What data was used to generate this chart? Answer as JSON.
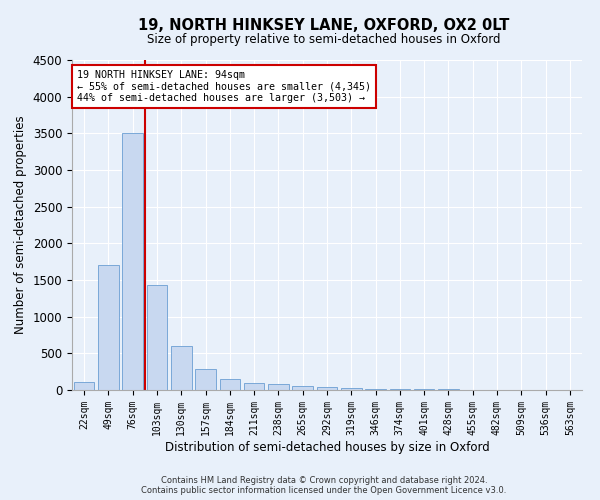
{
  "title_line1": "19, NORTH HINKSEY LANE, OXFORD, OX2 0LT",
  "title_line2": "Size of property relative to semi-detached houses in Oxford",
  "xlabel": "Distribution of semi-detached houses by size in Oxford",
  "ylabel": "Number of semi-detached properties",
  "footer_line1": "Contains HM Land Registry data © Crown copyright and database right 2024.",
  "footer_line2": "Contains public sector information licensed under the Open Government Licence v3.0.",
  "categories": [
    "22sqm",
    "49sqm",
    "76sqm",
    "103sqm",
    "130sqm",
    "157sqm",
    "184sqm",
    "211sqm",
    "238sqm",
    "265sqm",
    "292sqm",
    "319sqm",
    "346sqm",
    "374sqm",
    "401sqm",
    "428sqm",
    "455sqm",
    "482sqm",
    "509sqm",
    "536sqm",
    "563sqm"
  ],
  "values": [
    110,
    1700,
    3500,
    1430,
    600,
    280,
    150,
    100,
    80,
    55,
    40,
    30,
    20,
    15,
    10,
    8,
    6,
    5,
    4,
    3,
    2
  ],
  "bar_color": "#c8d8f0",
  "bar_edge_color": "#7aa8d8",
  "background_color": "#e8f0fa",
  "grid_color": "#ffffff",
  "property_label": "19 NORTH HINKSEY LANE: 94sqm",
  "annotation_smaller": "← 55% of semi-detached houses are smaller (4,345)",
  "annotation_larger": "44% of semi-detached houses are larger (3,503) →",
  "annotation_box_color": "#ffffff",
  "annotation_box_edge_color": "#cc0000",
  "property_line_color": "#cc0000",
  "ylim": [
    0,
    4500
  ],
  "yticks": [
    0,
    500,
    1000,
    1500,
    2000,
    2500,
    3000,
    3500,
    4000,
    4500
  ]
}
